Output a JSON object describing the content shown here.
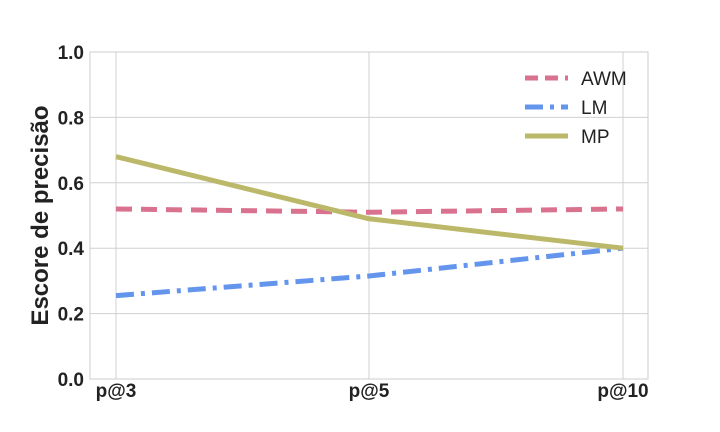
{
  "chart_data": {
    "type": "line",
    "categories": [
      "p@3",
      "p@5",
      "p@10"
    ],
    "ylabel": "Escore de precisão",
    "xlabel": "",
    "ylim": [
      0.0,
      1.0
    ],
    "yticks": [
      "0.0",
      "0.2",
      "0.4",
      "0.6",
      "0.8",
      "1.0"
    ],
    "grid": true,
    "legend_position": "top-right",
    "series": [
      {
        "name": "AWM",
        "values": [
          0.52,
          0.51,
          0.52
        ],
        "color": "#d9728f",
        "style": "dashed"
      },
      {
        "name": "LM",
        "values": [
          0.255,
          0.315,
          0.4
        ],
        "color": "#6495ed",
        "style": "dashdot"
      },
      {
        "name": "MP",
        "values": [
          0.68,
          0.49,
          0.4
        ],
        "color": "#bcb86a",
        "style": "solid"
      }
    ]
  }
}
